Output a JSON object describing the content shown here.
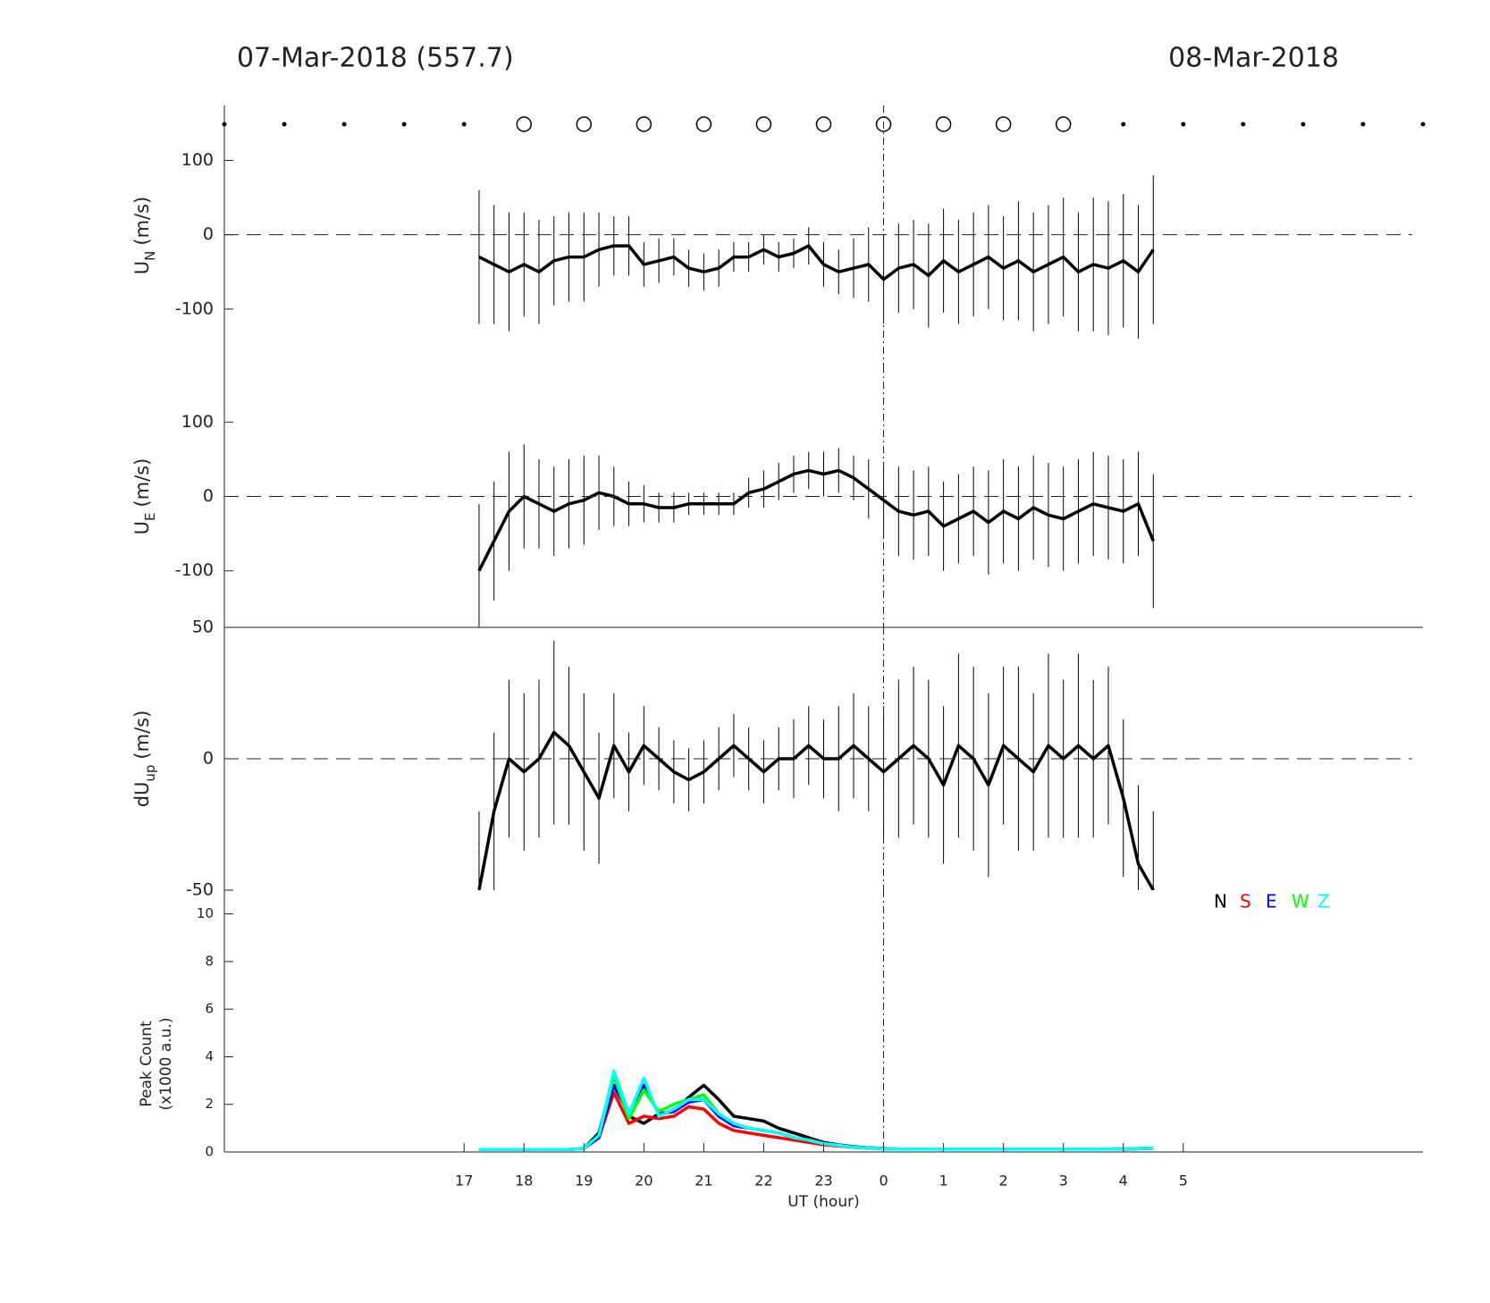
{
  "header": {
    "left_title": "07-Mar-2018 (557.7)",
    "right_title": "08-Mar-2018"
  },
  "chart_data": [
    {
      "type": "errorbar",
      "ylabel": "U",
      "ylabel_sub": "N",
      "ylabel_unit": "(m/s)",
      "xlim": [
        13,
        33
      ],
      "ylim": [
        -176,
        174
      ],
      "yticks": [
        -100,
        0,
        100
      ],
      "hline": 0,
      "vline": 24,
      "circle_x": [
        18,
        19,
        20,
        21,
        22,
        23,
        24,
        25,
        26,
        27
      ],
      "dot_x": [
        13,
        14,
        15,
        16,
        17,
        28,
        29,
        30,
        31,
        32,
        33
      ],
      "color": "#000000",
      "x": [
        17.25,
        17.5,
        17.75,
        18,
        18.25,
        18.5,
        18.75,
        19,
        19.25,
        19.5,
        19.75,
        20,
        20.25,
        20.5,
        20.75,
        21,
        21.25,
        21.5,
        21.75,
        22,
        22.25,
        22.5,
        22.75,
        23,
        23.25,
        23.5,
        23.75,
        24,
        24.25,
        24.5,
        24.75,
        25,
        25.25,
        25.5,
        25.75,
        26,
        26.25,
        26.5,
        26.75,
        27,
        27.25,
        27.5,
        27.75,
        28,
        28.25,
        28.5
      ],
      "values": [
        -30,
        -40,
        -50,
        -40,
        -50,
        -35,
        -30,
        -30,
        -20,
        -15,
        -15,
        -40,
        -35,
        -30,
        -45,
        -50,
        -45,
        -30,
        -30,
        -20,
        -30,
        -25,
        -15,
        -40,
        -50,
        -45,
        -40,
        -60,
        -45,
        -40,
        -55,
        -35,
        -50,
        -40,
        -30,
        -45,
        -35,
        -50,
        -40,
        -30,
        -50,
        -40,
        -45,
        -35,
        -50,
        -20
      ],
      "errors": [
        90,
        80,
        80,
        70,
        70,
        60,
        60,
        60,
        50,
        40,
        40,
        30,
        30,
        25,
        25,
        25,
        25,
        20,
        20,
        20,
        20,
        20,
        25,
        30,
        30,
        40,
        50,
        60,
        60,
        60,
        70,
        70,
        70,
        70,
        70,
        70,
        80,
        80,
        80,
        80,
        80,
        90,
        90,
        90,
        90,
        100
      ]
    },
    {
      "type": "errorbar",
      "ylabel": "U",
      "ylabel_sub": "E",
      "ylabel_unit": "(m/s)",
      "xlim": [
        13,
        33
      ],
      "ylim": [
        -176,
        176
      ],
      "yticks": [
        -100,
        0,
        100
      ],
      "hline": 0,
      "vline": 24,
      "color": "#000000",
      "x": [
        17.25,
        17.5,
        17.75,
        18,
        18.25,
        18.5,
        18.75,
        19,
        19.25,
        19.5,
        19.75,
        20,
        20.25,
        20.5,
        20.75,
        21,
        21.25,
        21.5,
        21.75,
        22,
        22.25,
        22.5,
        22.75,
        23,
        23.25,
        23.5,
        23.75,
        24,
        24.25,
        24.5,
        24.75,
        25,
        25.25,
        25.5,
        25.75,
        26,
        26.25,
        26.5,
        26.75,
        27,
        27.25,
        27.5,
        27.75,
        28,
        28.25,
        28.5
      ],
      "values": [
        -100,
        -60,
        -20,
        0,
        -10,
        -20,
        -10,
        -5,
        5,
        0,
        -10,
        -10,
        -15,
        -15,
        -10,
        -10,
        -10,
        -10,
        5,
        10,
        20,
        30,
        35,
        30,
        35,
        25,
        10,
        -5,
        -20,
        -25,
        -20,
        -40,
        -30,
        -20,
        -35,
        -20,
        -30,
        -15,
        -25,
        -30,
        -20,
        -10,
        -15,
        -20,
        -10,
        -60
      ],
      "errors": [
        90,
        80,
        80,
        70,
        60,
        60,
        60,
        60,
        50,
        40,
        30,
        25,
        20,
        20,
        15,
        15,
        15,
        15,
        20,
        25,
        25,
        25,
        25,
        30,
        30,
        30,
        40,
        50,
        60,
        60,
        60,
        60,
        60,
        60,
        70,
        70,
        70,
        70,
        70,
        70,
        70,
        70,
        70,
        70,
        70,
        90
      ]
    },
    {
      "type": "errorbar",
      "ylabel": "dU",
      "ylabel_sub": "up",
      "ylabel_unit": "(m/s)",
      "xlim": [
        13,
        33
      ],
      "ylim": [
        -50,
        50
      ],
      "yticks": [
        -50,
        0,
        50
      ],
      "hline": 0,
      "vline": 24,
      "frame_top": true,
      "color": "#000000",
      "x": [
        17.25,
        17.5,
        17.75,
        18,
        18.25,
        18.5,
        18.75,
        19,
        19.25,
        19.5,
        19.75,
        20,
        20.25,
        20.5,
        20.75,
        21,
        21.25,
        21.5,
        21.75,
        22,
        22.25,
        22.5,
        22.75,
        23,
        23.25,
        23.5,
        23.75,
        24,
        24.25,
        24.5,
        24.75,
        25,
        25.25,
        25.5,
        25.75,
        26,
        26.25,
        26.5,
        26.75,
        27,
        27.25,
        27.5,
        27.75,
        28,
        28.25,
        28.5
      ],
      "values": [
        -50,
        -20,
        0,
        -5,
        0,
        10,
        5,
        -5,
        -15,
        5,
        -5,
        5,
        0,
        -5,
        -8,
        -5,
        0,
        5,
        0,
        -5,
        0,
        0,
        5,
        0,
        0,
        5,
        0,
        -5,
        0,
        5,
        0,
        -10,
        5,
        0,
        -10,
        5,
        0,
        -5,
        5,
        0,
        5,
        0,
        5,
        -15,
        -40,
        -50
      ],
      "errors": [
        30,
        30,
        30,
        30,
        30,
        35,
        30,
        30,
        25,
        20,
        15,
        15,
        12,
        12,
        12,
        12,
        12,
        12,
        12,
        12,
        12,
        15,
        15,
        15,
        20,
        20,
        20,
        25,
        30,
        30,
        30,
        30,
        35,
        35,
        35,
        30,
        35,
        30,
        35,
        30,
        35,
        30,
        30,
        30,
        30,
        30
      ]
    },
    {
      "type": "line",
      "ylabel": "Peak Count",
      "ylabel_line2": "(x1000 a.u.)",
      "xlabel": "UT (hour)",
      "xlim": [
        13,
        33
      ],
      "ylim": [
        0,
        11
      ],
      "yticks": [
        0,
        2,
        4,
        6,
        8,
        10
      ],
      "vline": 24,
      "xticks": [
        17,
        18,
        19,
        20,
        21,
        22,
        23,
        {
          "value": 24,
          "label": "0"
        },
        {
          "value": 25,
          "label": "1"
        },
        {
          "value": 26,
          "label": "2"
        },
        {
          "value": 27,
          "label": "3"
        },
        {
          "value": 28,
          "label": "4"
        },
        {
          "value": 29,
          "label": "5"
        }
      ],
      "x": [
        17.25,
        17.5,
        17.75,
        18,
        18.25,
        18.5,
        18.75,
        19,
        19.25,
        19.5,
        19.75,
        20,
        20.25,
        20.5,
        20.75,
        21,
        21.25,
        21.5,
        21.75,
        22,
        22.25,
        22.5,
        22.75,
        23,
        23.25,
        23.5,
        23.75,
        24,
        24.25,
        24.5,
        24.75,
        25,
        25.25,
        25.5,
        25.75,
        26,
        26.25,
        26.5,
        26.75,
        27,
        27.25,
        27.5,
        27.75,
        28,
        28.25,
        28.5
      ],
      "series": [
        {
          "name": "N",
          "color": "#000000",
          "values": [
            0.1,
            0.1,
            0.1,
            0.1,
            0.1,
            0.1,
            0.1,
            0.15,
            0.8,
            3.2,
            1.5,
            1.2,
            1.6,
            1.7,
            2.3,
            2.8,
            2.2,
            1.5,
            1.4,
            1.3,
            1.0,
            0.8,
            0.6,
            0.4,
            0.3,
            0.22,
            0.18,
            0.15,
            0.12,
            0.12,
            0.12,
            0.12,
            0.12,
            0.12,
            0.12,
            0.12,
            0.12,
            0.12,
            0.12,
            0.12,
            0.12,
            0.12,
            0.12,
            0.13,
            0.14,
            0.16
          ]
        },
        {
          "name": "S",
          "color": "#ff0000",
          "values": [
            0.1,
            0.1,
            0.1,
            0.1,
            0.1,
            0.1,
            0.1,
            0.15,
            0.6,
            2.5,
            1.2,
            1.5,
            1.4,
            1.5,
            1.9,
            1.8,
            1.2,
            0.9,
            0.8,
            0.7,
            0.6,
            0.5,
            0.4,
            0.3,
            0.25,
            0.2,
            0.16,
            0.14,
            0.12,
            0.12,
            0.12,
            0.12,
            0.12,
            0.12,
            0.12,
            0.12,
            0.12,
            0.12,
            0.12,
            0.12,
            0.12,
            0.12,
            0.12,
            0.13,
            0.14,
            0.16
          ]
        },
        {
          "name": "E",
          "color": "#0000ff",
          "values": [
            0.1,
            0.1,
            0.1,
            0.1,
            0.1,
            0.1,
            0.1,
            0.15,
            0.6,
            2.8,
            1.6,
            2.8,
            1.6,
            1.7,
            2.1,
            2.2,
            1.5,
            1.1,
            1.0,
            0.9,
            0.8,
            0.6,
            0.5,
            0.35,
            0.28,
            0.2,
            0.17,
            0.14,
            0.12,
            0.12,
            0.12,
            0.12,
            0.12,
            0.12,
            0.12,
            0.12,
            0.12,
            0.12,
            0.12,
            0.12,
            0.12,
            0.12,
            0.12,
            0.13,
            0.14,
            0.16
          ]
        },
        {
          "name": "W",
          "color": "#00ff00",
          "values": [
            0.1,
            0.1,
            0.1,
            0.1,
            0.1,
            0.1,
            0.1,
            0.15,
            0.7,
            3.2,
            1.4,
            2.6,
            1.7,
            2.0,
            2.2,
            2.4,
            1.6,
            1.2,
            1.0,
            0.9,
            0.8,
            0.6,
            0.5,
            0.35,
            0.28,
            0.2,
            0.17,
            0.14,
            0.12,
            0.12,
            0.12,
            0.12,
            0.12,
            0.12,
            0.12,
            0.12,
            0.12,
            0.12,
            0.12,
            0.12,
            0.12,
            0.12,
            0.12,
            0.13,
            0.14,
            0.16
          ]
        },
        {
          "name": "Z",
          "color": "#00ffff",
          "values": [
            0.1,
            0.1,
            0.1,
            0.1,
            0.1,
            0.1,
            0.1,
            0.15,
            0.7,
            3.4,
            1.6,
            3.1,
            1.5,
            1.8,
            2.2,
            2.2,
            1.6,
            1.2,
            1.0,
            0.9,
            0.8,
            0.6,
            0.5,
            0.35,
            0.28,
            0.2,
            0.17,
            0.14,
            0.12,
            0.12,
            0.12,
            0.12,
            0.12,
            0.12,
            0.12,
            0.12,
            0.12,
            0.12,
            0.12,
            0.12,
            0.12,
            0.12,
            0.12,
            0.13,
            0.14,
            0.16
          ]
        }
      ]
    }
  ]
}
